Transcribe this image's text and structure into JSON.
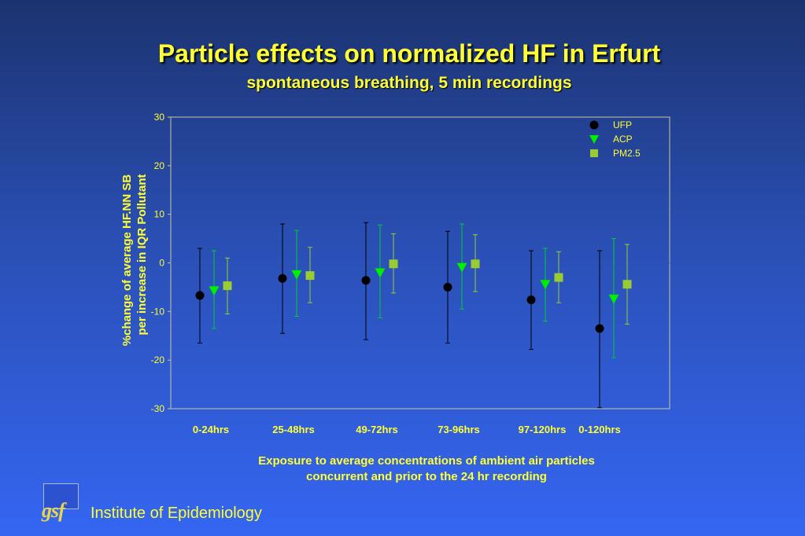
{
  "header": {
    "title": "Particle effects on normalized HF in Erfurt",
    "subtitle": "spontaneous breathing, 5 min  recordings"
  },
  "footer": {
    "caption_line1": "Exposure to average concentrations of ambient air particles",
    "caption_line2": "concurrent and prior to the 24 hr recording",
    "logo_text": "gsf",
    "institute": "Institute of Epidemiology"
  },
  "chart_data": {
    "type": "scatter",
    "title": "",
    "ylabel_line1": "%change of average HF.NN SB",
    "ylabel_line2": "per increase in IQR Pollutant",
    "xlabel": "",
    "ylim": [
      -30,
      30
    ],
    "yticks": [
      30,
      20,
      10,
      0,
      -10,
      -20,
      -30
    ],
    "categories": [
      "0-24hrs",
      "25-48hrs",
      "49-72hrs",
      "73-96hrs",
      "97-120hrs",
      "0-120hrs"
    ],
    "legend_position": "top-right",
    "grid": false,
    "series": [
      {
        "name": "UFP",
        "marker": "circle",
        "color": "#000000",
        "bar_color": "#000000",
        "values": [
          -6.7,
          -3.2,
          -3.6,
          -5.0,
          -7.6,
          -13.5
        ],
        "lower": [
          -16.5,
          -14.5,
          -15.8,
          -16.5,
          -17.8,
          -29.8
        ],
        "upper": [
          3.0,
          8.0,
          8.3,
          6.5,
          2.5,
          2.5
        ]
      },
      {
        "name": "ACP",
        "marker": "triangle-down",
        "color": "#00ee00",
        "bar_color": "#00cc33",
        "values": [
          -5.7,
          -2.4,
          -2.0,
          -0.9,
          -4.4,
          -7.4
        ],
        "lower": [
          -13.5,
          -11.0,
          -11.3,
          -9.5,
          -12.0,
          -19.5
        ],
        "upper": [
          2.5,
          6.7,
          7.8,
          8.0,
          3.0,
          5.0
        ]
      },
      {
        "name": "PM2.5",
        "marker": "square",
        "color": "#99cc33",
        "bar_color": "#99cc33",
        "values": [
          -4.7,
          -2.6,
          -0.2,
          -0.2,
          -3.0,
          -4.4
        ],
        "lower": [
          -10.5,
          -8.2,
          -6.2,
          -5.9,
          -8.2,
          -12.6
        ],
        "upper": [
          1.0,
          3.2,
          6.0,
          5.8,
          2.3,
          3.8
        ]
      }
    ]
  }
}
